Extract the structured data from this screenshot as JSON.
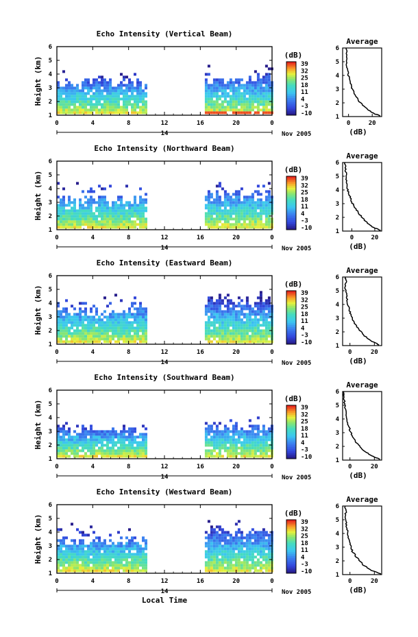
{
  "chart_data": [
    {
      "type": "heatmap",
      "title": "Echo Intensity (Vertical Beam)",
      "ylabel": "Height (km)",
      "ylim": [
        1,
        6
      ],
      "yticks": [
        1,
        2,
        3,
        4,
        5,
        6
      ],
      "xlim": [
        0,
        24
      ],
      "xticks": [
        "0",
        "4",
        "8",
        "12",
        "16",
        "20",
        "0"
      ],
      "day_label": "14",
      "month_label": "Nov 2005",
      "colorbar_label": "(dB)",
      "colorbar_ticks": [
        "39",
        "32",
        "25",
        "18",
        "11",
        "4",
        "-3",
        "-10"
      ],
      "colorbar_range": [
        -10,
        39
      ],
      "data_gaps": [
        [
          9.9,
          16.5
        ]
      ],
      "segments": [
        {
          "x_start": 0,
          "x_end": 9.9,
          "top_km": 3.2,
          "sparse_top_km": 4.3
        },
        {
          "x_start": 16.5,
          "x_end": 24,
          "top_km": 3.6,
          "sparse_top_km": 4.6
        }
      ],
      "average_profile": {
        "title": "Average",
        "xlabel": "(dB)",
        "xticks": [
          0,
          20
        ],
        "xlim": [
          -5,
          28
        ],
        "ylim": [
          1,
          6
        ],
        "yticks": [
          1,
          2,
          3,
          4,
          5,
          6
        ],
        "points": [
          [
            27,
            1.05
          ],
          [
            22,
            1.2
          ],
          [
            16,
            1.5
          ],
          [
            10,
            2.0
          ],
          [
            6,
            2.5
          ],
          [
            3,
            3.0
          ],
          [
            1.5,
            3.5
          ],
          [
            0,
            4.0
          ],
          [
            -1,
            4.5
          ],
          [
            -2,
            5.0
          ],
          [
            -1.5,
            5.5
          ],
          [
            -2,
            6.0
          ]
        ]
      }
    },
    {
      "type": "heatmap",
      "title": "Echo Intensity (Northward Beam)",
      "ylabel": "Height (km)",
      "ylim": [
        1,
        6
      ],
      "yticks": [
        1,
        2,
        3,
        4,
        5,
        6
      ],
      "xlim": [
        0,
        24
      ],
      "xticks": [
        "0",
        "4",
        "8",
        "12",
        "16",
        "20",
        "0"
      ],
      "day_label": "14",
      "month_label": "Nov 2005",
      "colorbar_label": "(dB)",
      "colorbar_ticks": [
        "39",
        "32",
        "25",
        "18",
        "11",
        "4",
        "-3",
        "-10"
      ],
      "colorbar_range": [
        -10,
        39
      ],
      "data_gaps": [
        [
          9.9,
          16.5
        ]
      ],
      "segments": [
        {
          "x_start": 0,
          "x_end": 9.9,
          "top_km": 3.0,
          "sparse_top_km": 4.6
        },
        {
          "x_start": 16.5,
          "x_end": 24,
          "top_km": 3.4,
          "sparse_top_km": 4.8
        }
      ],
      "average_profile": {
        "title": "Average",
        "xlabel": "(dB)",
        "xticks": [
          0,
          20
        ],
        "xlim": [
          -8,
          26
        ],
        "ylim": [
          1,
          6
        ],
        "yticks": [
          1,
          2,
          3,
          4,
          5,
          6
        ],
        "points": [
          [
            25,
            1.05
          ],
          [
            18,
            1.3
          ],
          [
            12,
            1.7
          ],
          [
            7,
            2.2
          ],
          [
            3,
            2.7
          ],
          [
            0,
            3.1
          ],
          [
            -2,
            3.6
          ],
          [
            -4,
            4.1
          ],
          [
            -4.5,
            4.6
          ],
          [
            -5,
            5.1
          ],
          [
            -5.5,
            5.6
          ],
          [
            -6,
            6.0
          ]
        ]
      }
    },
    {
      "type": "heatmap",
      "title": "Echo Intensity (Eastward Beam)",
      "ylabel": "Height (km)",
      "ylim": [
        1,
        6
      ],
      "yticks": [
        1,
        2,
        3,
        4,
        5,
        6
      ],
      "xlim": [
        0,
        24
      ],
      "xticks": [
        "0",
        "4",
        "8",
        "12",
        "16",
        "20",
        "0"
      ],
      "day_label": "14",
      "month_label": "Nov 2005",
      "colorbar_label": "(dB)",
      "colorbar_ticks": [
        "39",
        "32",
        "25",
        "18",
        "11",
        "4",
        "-3",
        "-10"
      ],
      "colorbar_range": [
        -10,
        39
      ],
      "data_gaps": [
        [
          9.9,
          16.5
        ]
      ],
      "segments": [
        {
          "x_start": 0,
          "x_end": 9.9,
          "top_km": 3.3,
          "sparse_top_km": 4.8
        },
        {
          "x_start": 16.5,
          "x_end": 24,
          "top_km": 4.0,
          "sparse_top_km": 4.9
        }
      ],
      "average_profile": {
        "title": "Average",
        "xlabel": "(dB)",
        "xticks": [
          0,
          20
        ],
        "xlim": [
          -6,
          26
        ],
        "ylim": [
          1,
          6
        ],
        "yticks": [
          1,
          2,
          3,
          4,
          5,
          6
        ],
        "points": [
          [
            24,
            1.05
          ],
          [
            18,
            1.3
          ],
          [
            12,
            1.7
          ],
          [
            7,
            2.2
          ],
          [
            3,
            2.7
          ],
          [
            1,
            3.2
          ],
          [
            -1,
            3.7
          ],
          [
            -2,
            4.2
          ],
          [
            -3,
            4.7
          ],
          [
            -4,
            5.2
          ],
          [
            -3,
            5.7
          ],
          [
            -4,
            6.0
          ]
        ]
      }
    },
    {
      "type": "heatmap",
      "title": "Echo Intensity (Southward Beam)",
      "ylabel": "Height (km)",
      "ylim": [
        1,
        6
      ],
      "yticks": [
        1,
        2,
        3,
        4,
        5,
        6
      ],
      "xlim": [
        0,
        24
      ],
      "xticks": [
        "0",
        "4",
        "8",
        "12",
        "16",
        "20",
        "0"
      ],
      "day_label": "14",
      "month_label": "Nov 2005",
      "colorbar_label": "(dB)",
      "colorbar_ticks": [
        "39",
        "32",
        "25",
        "18",
        "11",
        "4",
        "-3",
        "-10"
      ],
      "colorbar_range": [
        -10,
        39
      ],
      "data_gaps": [
        [
          9.9,
          16.5
        ]
      ],
      "segments": [
        {
          "x_start": 0,
          "x_end": 9.9,
          "top_km": 3.0,
          "sparse_top_km": 3.9
        },
        {
          "x_start": 16.5,
          "x_end": 24,
          "top_km": 3.2,
          "sparse_top_km": 4.3
        }
      ],
      "average_profile": {
        "title": "Average",
        "xlabel": "(dB)",
        "xticks": [
          0,
          20
        ],
        "xlim": [
          -6,
          26
        ],
        "ylim": [
          1,
          6
        ],
        "yticks": [
          1,
          2,
          3,
          4,
          5,
          6
        ],
        "points": [
          [
            25,
            1.05
          ],
          [
            18,
            1.3
          ],
          [
            11,
            1.7
          ],
          [
            6,
            2.2
          ],
          [
            2,
            2.7
          ],
          [
            0,
            3.2
          ],
          [
            -2,
            3.7
          ],
          [
            -3,
            4.2
          ],
          [
            -4,
            4.7
          ],
          [
            -4.5,
            5.2
          ],
          [
            -5,
            5.7
          ],
          [
            -5.5,
            6.0
          ]
        ]
      }
    },
    {
      "type": "heatmap",
      "title": "Echo Intensity (Westward Beam)",
      "ylabel": "Height (km)",
      "ylim": [
        1,
        6
      ],
      "yticks": [
        1,
        2,
        3,
        4,
        5,
        6
      ],
      "xlim": [
        0,
        24
      ],
      "xticks": [
        "0",
        "4",
        "8",
        "12",
        "16",
        "20",
        "0"
      ],
      "day_label": "14",
      "month_label": "Nov 2005",
      "colorbar_label": "(dB)",
      "colorbar_ticks": [
        "39",
        "32",
        "25",
        "18",
        "11",
        "4",
        "-3",
        "-10"
      ],
      "colorbar_range": [
        -10,
        39
      ],
      "data_gaps": [
        [
          9.9,
          16.5
        ]
      ],
      "segments": [
        {
          "x_start": 0,
          "x_end": 9.9,
          "top_km": 3.2,
          "sparse_top_km": 4.6
        },
        {
          "x_start": 16.5,
          "x_end": 24,
          "top_km": 3.8,
          "sparse_top_km": 4.9
        }
      ],
      "average_profile": {
        "title": "Average",
        "xlabel": "(dB)",
        "xticks": [
          0,
          20
        ],
        "xlim": [
          -6,
          26
        ],
        "ylim": [
          1,
          6
        ],
        "yticks": [
          1,
          2,
          3,
          4,
          5,
          6
        ],
        "points": [
          [
            25,
            1.05
          ],
          [
            18,
            1.3
          ],
          [
            11,
            1.7
          ],
          [
            6,
            2.2
          ],
          [
            2,
            2.7
          ],
          [
            0,
            3.2
          ],
          [
            -1,
            3.7
          ],
          [
            -2,
            4.2
          ],
          [
            -3,
            4.7
          ],
          [
            -4,
            5.2
          ],
          [
            -3,
            5.7
          ],
          [
            -4,
            6.0
          ]
        ]
      }
    }
  ],
  "footer": {
    "xlabel": "Local Time"
  }
}
